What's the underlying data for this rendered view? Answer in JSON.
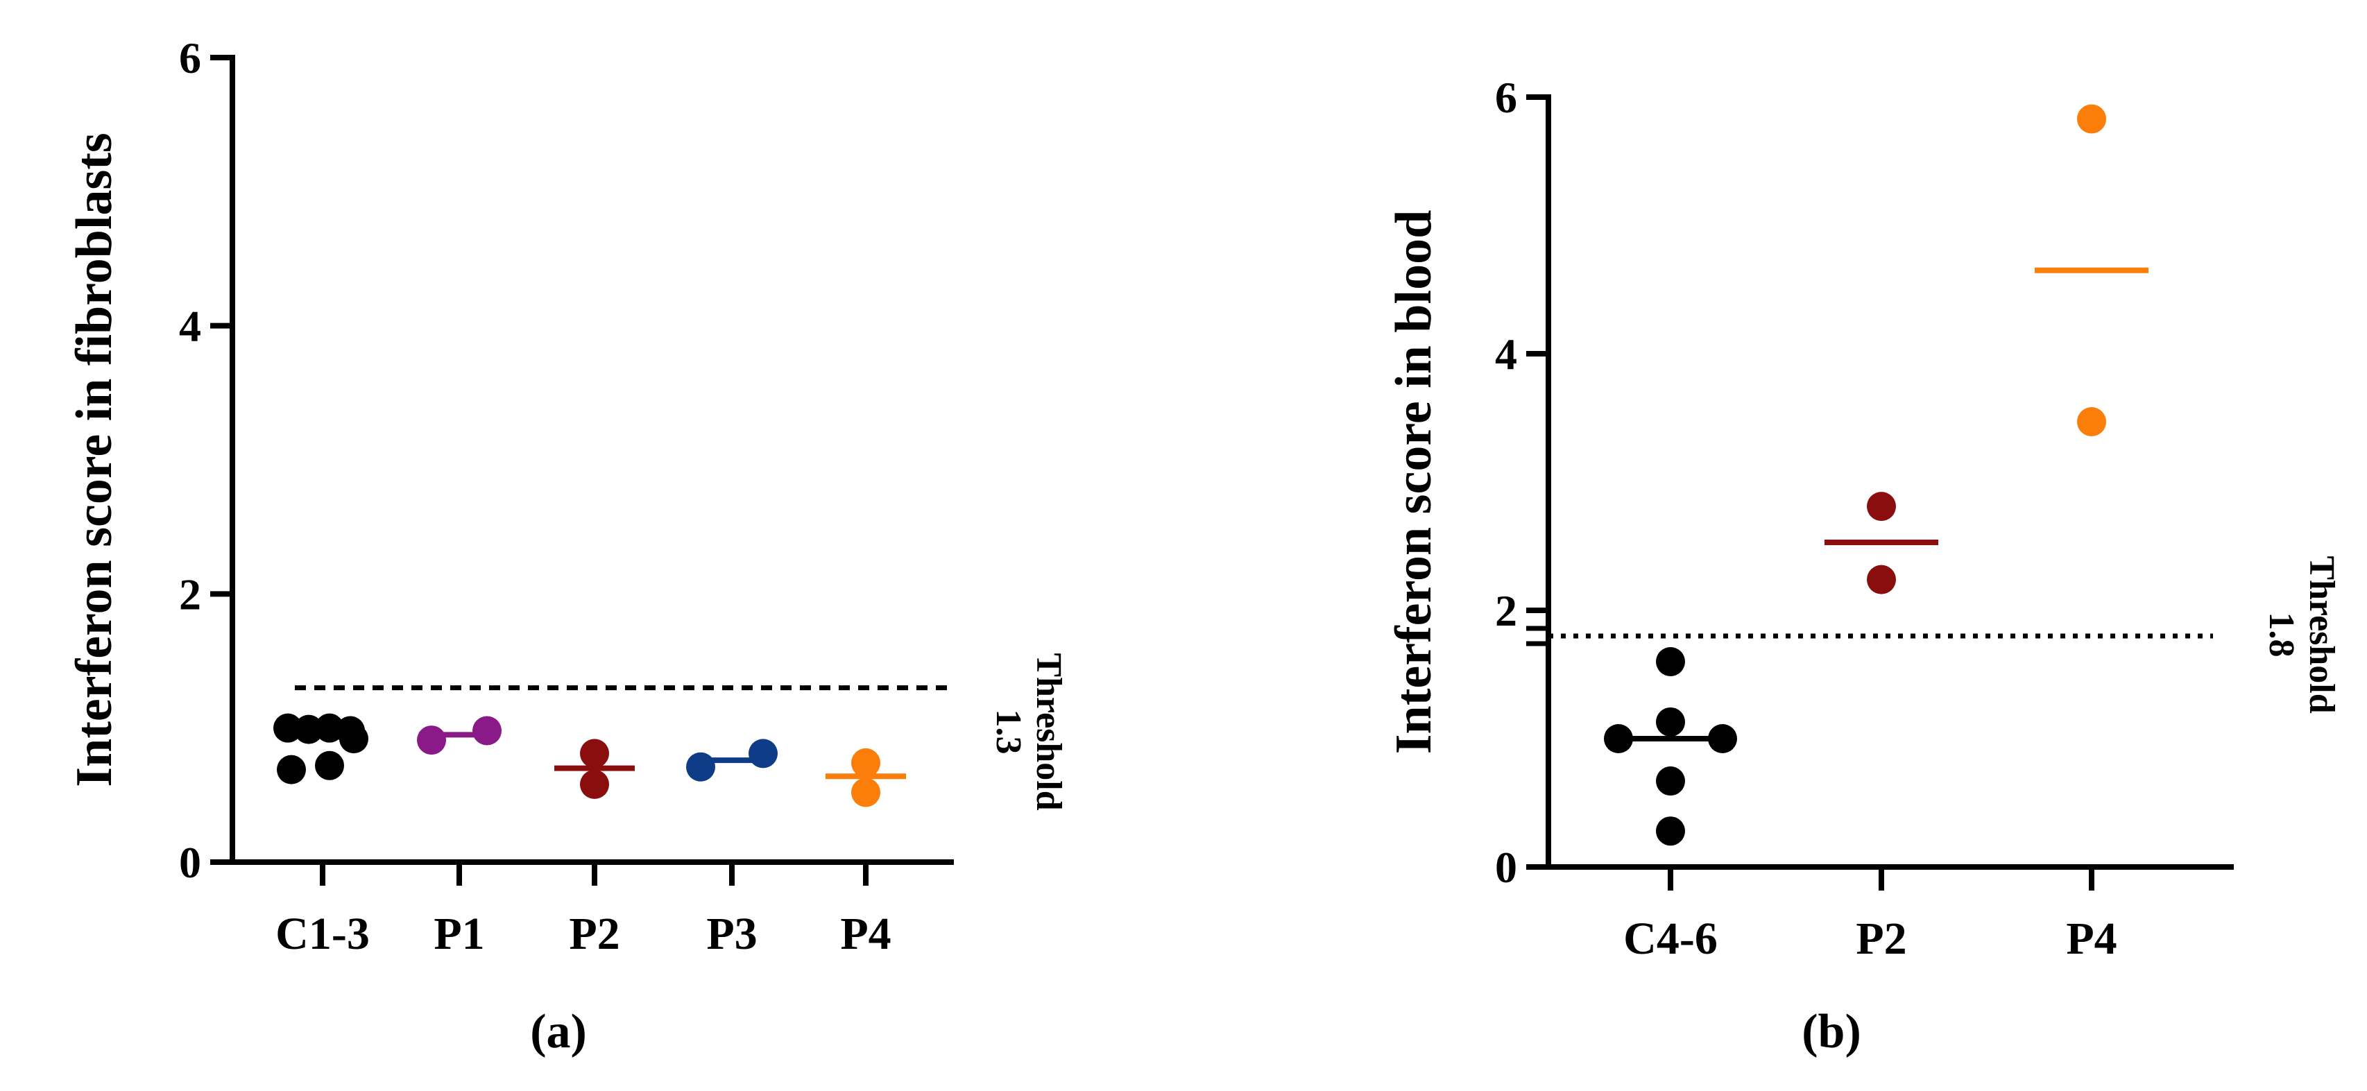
{
  "chart_data": [
    {
      "type": "scatter",
      "panel_label": "(a)",
      "ylabel": "Interferon score in fibroblasts",
      "ylim": [
        0,
        6
      ],
      "yticks": [
        0,
        2,
        4,
        6
      ],
      "categories": [
        "C1-3",
        "P1",
        "P2",
        "P3",
        "P4"
      ],
      "threshold": {
        "value": 1.3,
        "label": "Threshold",
        "value_label": "1.3",
        "style": "dashed"
      },
      "series": [
        {
          "category": "C1-3",
          "color": "#000000",
          "points": [
            1.0,
            0.99,
            1.0,
            0.98,
            0.92,
            0.69,
            0.72
          ],
          "median": 0.97
        },
        {
          "category": "P1",
          "color": "#8b1a89",
          "points": [
            0.91,
            0.98
          ],
          "median": 0.95
        },
        {
          "category": "P2",
          "color": "#8b0e0e",
          "points": [
            0.81,
            0.58
          ],
          "median": 0.7
        },
        {
          "category": "P3",
          "color": "#0e3c86",
          "points": [
            0.71,
            0.81
          ],
          "median": 0.76
        },
        {
          "category": "P4",
          "color": "#fb7d0a",
          "points": [
            0.74,
            0.52
          ],
          "median": 0.64
        }
      ],
      "grid": false,
      "legend": "none"
    },
    {
      "type": "scatter",
      "panel_label": "(b)",
      "ylabel": "Interferon score in blood",
      "ylim": [
        0,
        6
      ],
      "yticks": [
        0,
        2,
        4,
        6
      ],
      "y_axis_break": true,
      "categories": [
        "C4-6",
        "P2",
        "P4"
      ],
      "threshold": {
        "value": 1.8,
        "label": "Threshold",
        "value_label": "1.8",
        "style": "dotted"
      },
      "series": [
        {
          "category": "C4-6",
          "color": "#000000",
          "points": [
            1.6,
            1.13,
            1.0,
            1.0,
            0.67,
            0.28
          ],
          "median": 1.0
        },
        {
          "category": "P2",
          "color": "#8b0e0e",
          "points": [
            2.81,
            2.24
          ],
          "median": 2.53
        },
        {
          "category": "P4",
          "color": "#fb7d0a",
          "points": [
            5.83,
            3.47
          ],
          "median": 4.65
        }
      ],
      "grid": false,
      "legend": "none"
    }
  ]
}
